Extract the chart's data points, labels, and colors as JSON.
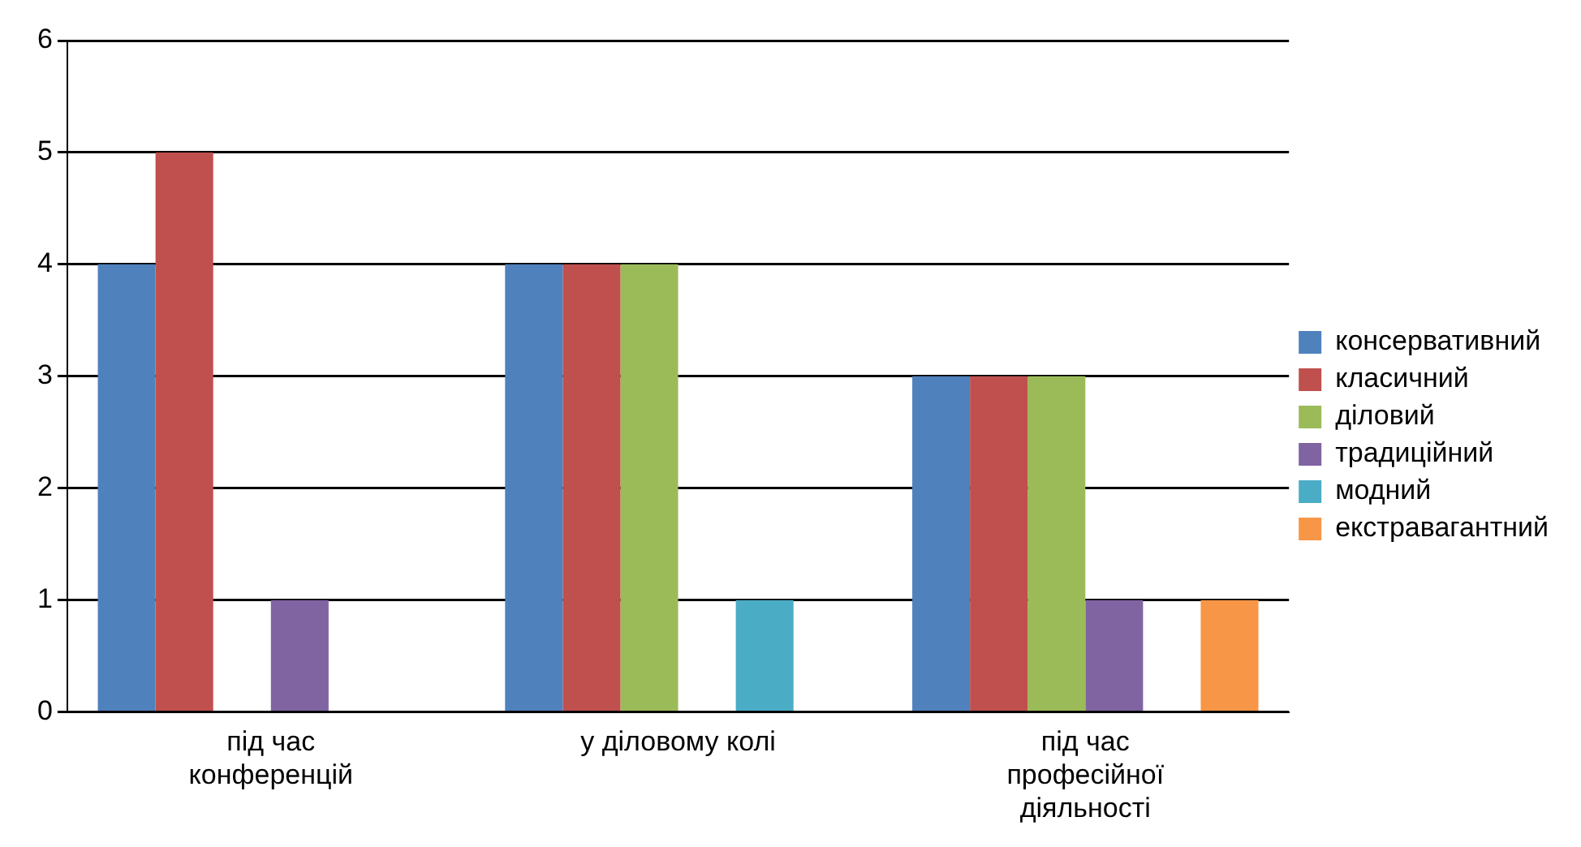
{
  "chart_data": {
    "type": "bar",
    "categories": [
      "під час конференцій",
      "у діловому колі",
      "під час професійної діяльності"
    ],
    "series": [
      {
        "name": "консервативний",
        "color": "#4f81bd",
        "values": [
          4,
          4,
          3
        ]
      },
      {
        "name": "класичний",
        "color": "#c0504d",
        "values": [
          5,
          4,
          3
        ]
      },
      {
        "name": "діловий",
        "color": "#9bbb59",
        "values": [
          null,
          4,
          3
        ]
      },
      {
        "name": "традиційний",
        "color": "#8064a2",
        "values": [
          1,
          null,
          1
        ]
      },
      {
        "name": "модний",
        "color": "#4bacc6",
        "values": [
          null,
          1,
          null
        ]
      },
      {
        "name": "екстравагантний",
        "color": "#f79646",
        "values": [
          null,
          null,
          1
        ]
      }
    ],
    "ylim": [
      0,
      6
    ],
    "yticks": [
      0,
      1,
      2,
      3,
      4,
      5,
      6
    ],
    "grid": "y",
    "legend": "right"
  }
}
